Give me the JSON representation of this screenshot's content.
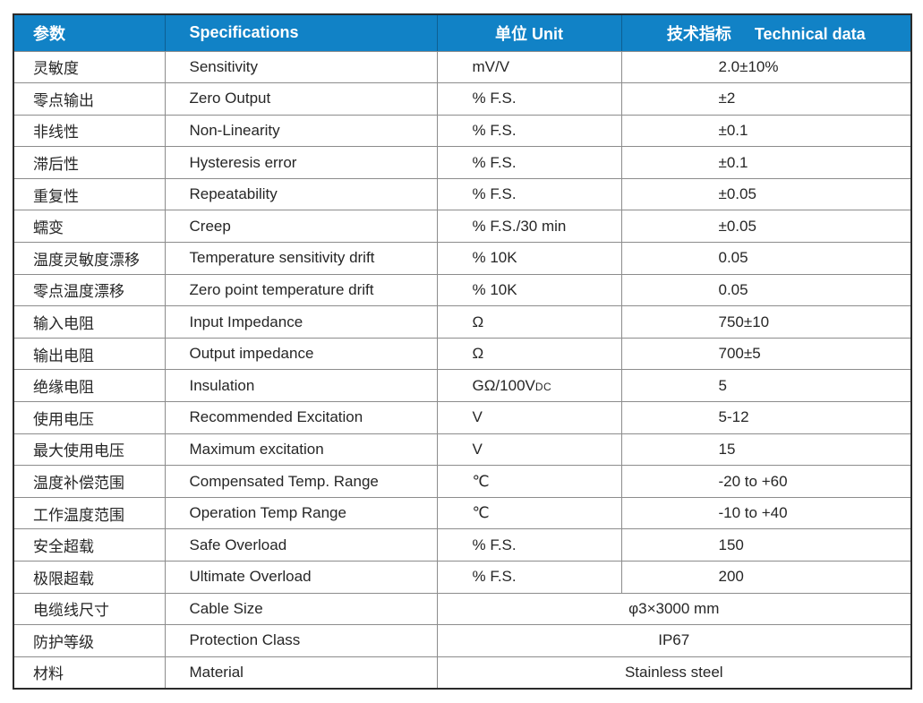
{
  "table": {
    "header": {
      "col_param": "参数",
      "col_spec": "Specifications",
      "col_unit": "单位 Unit",
      "col_tech_cn": "技术指标",
      "col_tech_en": "Technical data"
    },
    "rows": [
      {
        "cn": "灵敏度",
        "en": "Sensitivity",
        "unit": "mV/V",
        "value": "2.0±10%"
      },
      {
        "cn": "零点输出",
        "en": "Zero Output",
        "unit": "% F.S.",
        "value": "±2"
      },
      {
        "cn": "非线性",
        "en": "Non-Linearity",
        "unit": "% F.S.",
        "value": "±0.1"
      },
      {
        "cn": "滞后性",
        "en": "Hysteresis error",
        "unit": "% F.S.",
        "value": "±0.1"
      },
      {
        "cn": "重复性",
        "en": "Repeatability",
        "unit": "% F.S.",
        "value": "±0.05"
      },
      {
        "cn": "蠕变",
        "en": "Creep",
        "unit": "% F.S./30 min",
        "value": "±0.05"
      },
      {
        "cn": "温度灵敏度漂移",
        "en": "Temperature sensitivity drift",
        "unit": "% 10K",
        "value": "0.05"
      },
      {
        "cn": "零点温度漂移",
        "en": "Zero point temperature drift",
        "unit": "% 10K",
        "value": "0.05"
      },
      {
        "cn": "输入电阻",
        "en": "Input Impedance",
        "unit": "Ω",
        "value": "750±10"
      },
      {
        "cn": "输出电阻",
        "en": "Output impedance",
        "unit": "Ω",
        "value": "700±5"
      },
      {
        "cn": "绝缘电阻",
        "en": "Insulation",
        "unit": "GΩ/100V",
        "unit_sub": "DC",
        "value": "5"
      },
      {
        "cn": "使用电压",
        "en": "Recommended Excitation",
        "unit": "V",
        "value": "5-12"
      },
      {
        "cn": "最大使用电压",
        "en": "Maximum excitation",
        "unit": "V",
        "value": "15"
      },
      {
        "cn": "温度补偿范围",
        "en": "Compensated Temp. Range",
        "unit": "℃",
        "value": "-20 to +60"
      },
      {
        "cn": "工作温度范围",
        "en": "Operation Temp Range",
        "unit": "℃",
        "value": "-10 to +40"
      },
      {
        "cn": "安全超载",
        "en": "Safe Overload",
        "unit": "% F.S.",
        "value": "150"
      },
      {
        "cn": "极限超载",
        "en": "Ultimate Overload",
        "unit": "% F.S.",
        "value": "200"
      },
      {
        "cn": "电缆线尺寸",
        "en": "Cable Size",
        "merged": "φ3×3000 mm"
      },
      {
        "cn": "防护等级",
        "en": "Protection Class",
        "merged": "IP67"
      },
      {
        "cn": "材料",
        "en": "Material",
        "merged": "Stainless steel"
      }
    ]
  },
  "colors": {
    "header_bg": "#1182c6",
    "header_text": "#ffffff",
    "grid_line": "#8c8c8c",
    "outer_border": "#2b2b2b",
    "body_text": "#262626"
  }
}
